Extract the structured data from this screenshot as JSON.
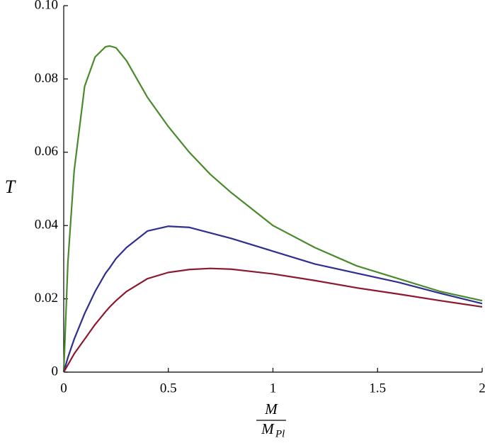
{
  "chart_data": {
    "type": "line",
    "ylabel": "T",
    "xlabel_numerator": "M",
    "xlabel_denominator": "M",
    "xlabel_denominator_subscript": "Pl",
    "x": [
      0,
      0.02,
      0.05,
      0.1,
      0.15,
      0.2,
      0.22,
      0.25,
      0.3,
      0.4,
      0.5,
      0.6,
      0.7,
      0.8,
      1.0,
      1.2,
      1.4,
      1.6,
      1.8,
      2.0
    ],
    "series": [
      {
        "color": "#4a8a2c",
        "values": [
          0,
          0.03,
          0.055,
          0.078,
          0.086,
          0.0888,
          0.089,
          0.0885,
          0.085,
          0.075,
          0.067,
          0.06,
          0.054,
          0.049,
          0.04,
          0.034,
          0.029,
          0.0255,
          0.022,
          0.0195
        ]
      },
      {
        "color": "#2e2f8e",
        "values": [
          0,
          0.004,
          0.009,
          0.016,
          0.022,
          0.027,
          0.0285,
          0.031,
          0.034,
          0.0385,
          0.0398,
          0.0395,
          0.038,
          0.0365,
          0.033,
          0.0295,
          0.027,
          0.0245,
          0.0215,
          0.0187
        ]
      },
      {
        "color": "#8c1a2e",
        "values": [
          0,
          0.002,
          0.005,
          0.009,
          0.013,
          0.0165,
          0.0178,
          0.0195,
          0.022,
          0.0255,
          0.0272,
          0.028,
          0.0283,
          0.0281,
          0.0268,
          0.025,
          0.023,
          0.0213,
          0.0195,
          0.0178
        ]
      }
    ],
    "xlim": [
      0,
      2
    ],
    "xticks": [
      0,
      0.5,
      1,
      1.5,
      2
    ],
    "ylim": [
      0,
      0.1
    ],
    "yticks": [
      0,
      0.02,
      0.04,
      0.06,
      0.08,
      {
        "value": 0.1,
        "label": "0.10"
      }
    ]
  }
}
